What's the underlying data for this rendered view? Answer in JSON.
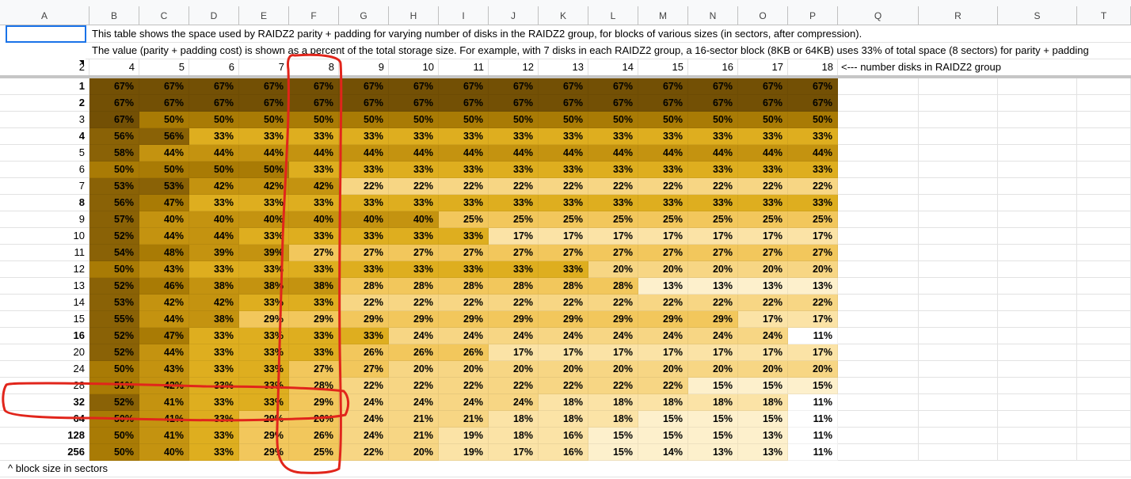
{
  "columns": [
    "A",
    "B",
    "C",
    "D",
    "E",
    "F",
    "G",
    "H",
    "I",
    "J",
    "K",
    "L",
    "M",
    "N",
    "O",
    "P",
    "Q",
    "R",
    "S",
    "T"
  ],
  "description": [
    "This table shows the space used by RAIDZ2 parity + padding for varying number of disks in the RAIDZ2 group, for blocks of various sizes (in sectors, after compression).",
    "The value (parity + padding cost) is shown as a percent of the total storage size.  For example, with 7 disks in each RAIDZ2 group, a 16-sector block (8KB or 64KB) uses 33% of total space (8 sectors) for parity + padding"
  ],
  "header_row": {
    "a": "2",
    "disks": [
      "4",
      "5",
      "6",
      "7",
      "8",
      "9",
      "10",
      "11",
      "12",
      "13",
      "14",
      "15",
      "16",
      "17",
      "18"
    ],
    "note": "<--- number disks in RAIDZ2 group"
  },
  "footer_note": "^ block size in sectors",
  "rows": [
    {
      "label": "1",
      "bold": true,
      "v": [
        "67%",
        "67%",
        "67%",
        "67%",
        "67%",
        "67%",
        "67%",
        "67%",
        "67%",
        "67%",
        "67%",
        "67%",
        "67%",
        "67%",
        "67%"
      ]
    },
    {
      "label": "2",
      "bold": true,
      "v": [
        "67%",
        "67%",
        "67%",
        "67%",
        "67%",
        "67%",
        "67%",
        "67%",
        "67%",
        "67%",
        "67%",
        "67%",
        "67%",
        "67%",
        "67%"
      ]
    },
    {
      "label": "3",
      "bold": false,
      "v": [
        "67%",
        "50%",
        "50%",
        "50%",
        "50%",
        "50%",
        "50%",
        "50%",
        "50%",
        "50%",
        "50%",
        "50%",
        "50%",
        "50%",
        "50%"
      ]
    },
    {
      "label": "4",
      "bold": true,
      "v": [
        "56%",
        "56%",
        "33%",
        "33%",
        "33%",
        "33%",
        "33%",
        "33%",
        "33%",
        "33%",
        "33%",
        "33%",
        "33%",
        "33%",
        "33%"
      ]
    },
    {
      "label": "5",
      "bold": false,
      "v": [
        "58%",
        "44%",
        "44%",
        "44%",
        "44%",
        "44%",
        "44%",
        "44%",
        "44%",
        "44%",
        "44%",
        "44%",
        "44%",
        "44%",
        "44%"
      ]
    },
    {
      "label": "6",
      "bold": false,
      "v": [
        "50%",
        "50%",
        "50%",
        "50%",
        "33%",
        "33%",
        "33%",
        "33%",
        "33%",
        "33%",
        "33%",
        "33%",
        "33%",
        "33%",
        "33%"
      ]
    },
    {
      "label": "7",
      "bold": false,
      "v": [
        "53%",
        "53%",
        "42%",
        "42%",
        "42%",
        "22%",
        "22%",
        "22%",
        "22%",
        "22%",
        "22%",
        "22%",
        "22%",
        "22%",
        "22%"
      ]
    },
    {
      "label": "8",
      "bold": true,
      "v": [
        "56%",
        "47%",
        "33%",
        "33%",
        "33%",
        "33%",
        "33%",
        "33%",
        "33%",
        "33%",
        "33%",
        "33%",
        "33%",
        "33%",
        "33%"
      ]
    },
    {
      "label": "9",
      "bold": false,
      "v": [
        "57%",
        "40%",
        "40%",
        "40%",
        "40%",
        "40%",
        "40%",
        "25%",
        "25%",
        "25%",
        "25%",
        "25%",
        "25%",
        "25%",
        "25%"
      ]
    },
    {
      "label": "10",
      "bold": false,
      "v": [
        "52%",
        "44%",
        "44%",
        "33%",
        "33%",
        "33%",
        "33%",
        "33%",
        "17%",
        "17%",
        "17%",
        "17%",
        "17%",
        "17%",
        "17%"
      ]
    },
    {
      "label": "11",
      "bold": false,
      "v": [
        "54%",
        "48%",
        "39%",
        "39%",
        "27%",
        "27%",
        "27%",
        "27%",
        "27%",
        "27%",
        "27%",
        "27%",
        "27%",
        "27%",
        "27%"
      ]
    },
    {
      "label": "12",
      "bold": false,
      "v": [
        "50%",
        "43%",
        "33%",
        "33%",
        "33%",
        "33%",
        "33%",
        "33%",
        "33%",
        "33%",
        "20%",
        "20%",
        "20%",
        "20%",
        "20%"
      ]
    },
    {
      "label": "13",
      "bold": false,
      "v": [
        "52%",
        "46%",
        "38%",
        "38%",
        "38%",
        "28%",
        "28%",
        "28%",
        "28%",
        "28%",
        "28%",
        "13%",
        "13%",
        "13%",
        "13%"
      ]
    },
    {
      "label": "14",
      "bold": false,
      "v": [
        "53%",
        "42%",
        "42%",
        "33%",
        "33%",
        "22%",
        "22%",
        "22%",
        "22%",
        "22%",
        "22%",
        "22%",
        "22%",
        "22%",
        "22%"
      ]
    },
    {
      "label": "15",
      "bold": false,
      "v": [
        "55%",
        "44%",
        "38%",
        "29%",
        "29%",
        "29%",
        "29%",
        "29%",
        "29%",
        "29%",
        "29%",
        "29%",
        "29%",
        "17%",
        "17%"
      ]
    },
    {
      "label": "16",
      "bold": true,
      "v": [
        "52%",
        "47%",
        "33%",
        "33%",
        "33%",
        "33%",
        "24%",
        "24%",
        "24%",
        "24%",
        "24%",
        "24%",
        "24%",
        "24%",
        "11%"
      ]
    },
    {
      "label": "20",
      "bold": false,
      "v": [
        "52%",
        "44%",
        "33%",
        "33%",
        "33%",
        "26%",
        "26%",
        "26%",
        "17%",
        "17%",
        "17%",
        "17%",
        "17%",
        "17%",
        "17%"
      ]
    },
    {
      "label": "24",
      "bold": false,
      "v": [
        "50%",
        "43%",
        "33%",
        "33%",
        "27%",
        "27%",
        "20%",
        "20%",
        "20%",
        "20%",
        "20%",
        "20%",
        "20%",
        "20%",
        "20%"
      ]
    },
    {
      "label": "28",
      "bold": false,
      "v": [
        "51%",
        "42%",
        "33%",
        "33%",
        "28%",
        "22%",
        "22%",
        "22%",
        "22%",
        "22%",
        "22%",
        "22%",
        "15%",
        "15%",
        "15%"
      ]
    },
    {
      "label": "32",
      "bold": true,
      "v": [
        "52%",
        "41%",
        "33%",
        "33%",
        "29%",
        "24%",
        "24%",
        "24%",
        "24%",
        "18%",
        "18%",
        "18%",
        "18%",
        "18%",
        "11%"
      ]
    },
    {
      "label": "64",
      "bold": true,
      "v": [
        "50%",
        "41%",
        "33%",
        "29%",
        "26%",
        "24%",
        "21%",
        "21%",
        "18%",
        "18%",
        "18%",
        "15%",
        "15%",
        "15%",
        "11%"
      ]
    },
    {
      "label": "128",
      "bold": true,
      "v": [
        "50%",
        "41%",
        "33%",
        "29%",
        "26%",
        "24%",
        "21%",
        "19%",
        "18%",
        "16%",
        "15%",
        "15%",
        "15%",
        "13%",
        "11%"
      ]
    },
    {
      "label": "256",
      "bold": true,
      "v": [
        "50%",
        "40%",
        "33%",
        "29%",
        "25%",
        "22%",
        "20%",
        "19%",
        "17%",
        "16%",
        "15%",
        "14%",
        "13%",
        "13%",
        "11%"
      ]
    }
  ],
  "colors": {
    "scale": [
      "#ffffff",
      "#fdf0cc",
      "#fbe3a6",
      "#f7d684",
      "#f2c75c",
      "#deae1f",
      "#c49310",
      "#a97b05",
      "#8a6206",
      "#735005"
    ],
    "freeze_line": "#c6c6c6",
    "selection": "#1a73e8",
    "annotation": "#e1251b"
  }
}
